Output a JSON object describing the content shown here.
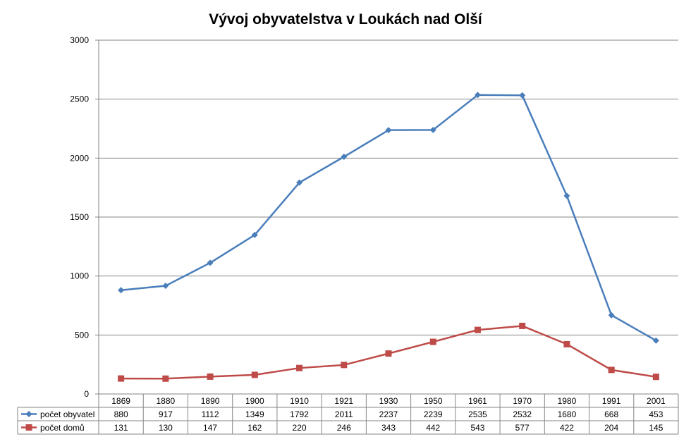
{
  "chart_data": {
    "type": "line",
    "title": "Vývoj obyvatelstva v Loukách nad Olší",
    "categories": [
      "1869",
      "1880",
      "1890",
      "1900",
      "1910",
      "1921",
      "1930",
      "1950",
      "1961",
      "1970",
      "1980",
      "1991",
      "2001"
    ],
    "ylim": [
      0,
      3000
    ],
    "yticks": [
      0,
      500,
      1000,
      1500,
      2000,
      2500,
      3000
    ],
    "grid": true,
    "legend": "data-table",
    "series": [
      {
        "name": "počet obyvatel",
        "color": "#4a7ebb",
        "marker": "diamond",
        "values": [
          880,
          917,
          1112,
          1349,
          1792,
          2011,
          2237,
          2239,
          2535,
          2532,
          1680,
          668,
          453
        ]
      },
      {
        "name": "počet domů",
        "color": "#be4b48",
        "marker": "square",
        "values": [
          131,
          130,
          147,
          162,
          220,
          246,
          343,
          442,
          543,
          577,
          422,
          204,
          145
        ]
      }
    ]
  }
}
